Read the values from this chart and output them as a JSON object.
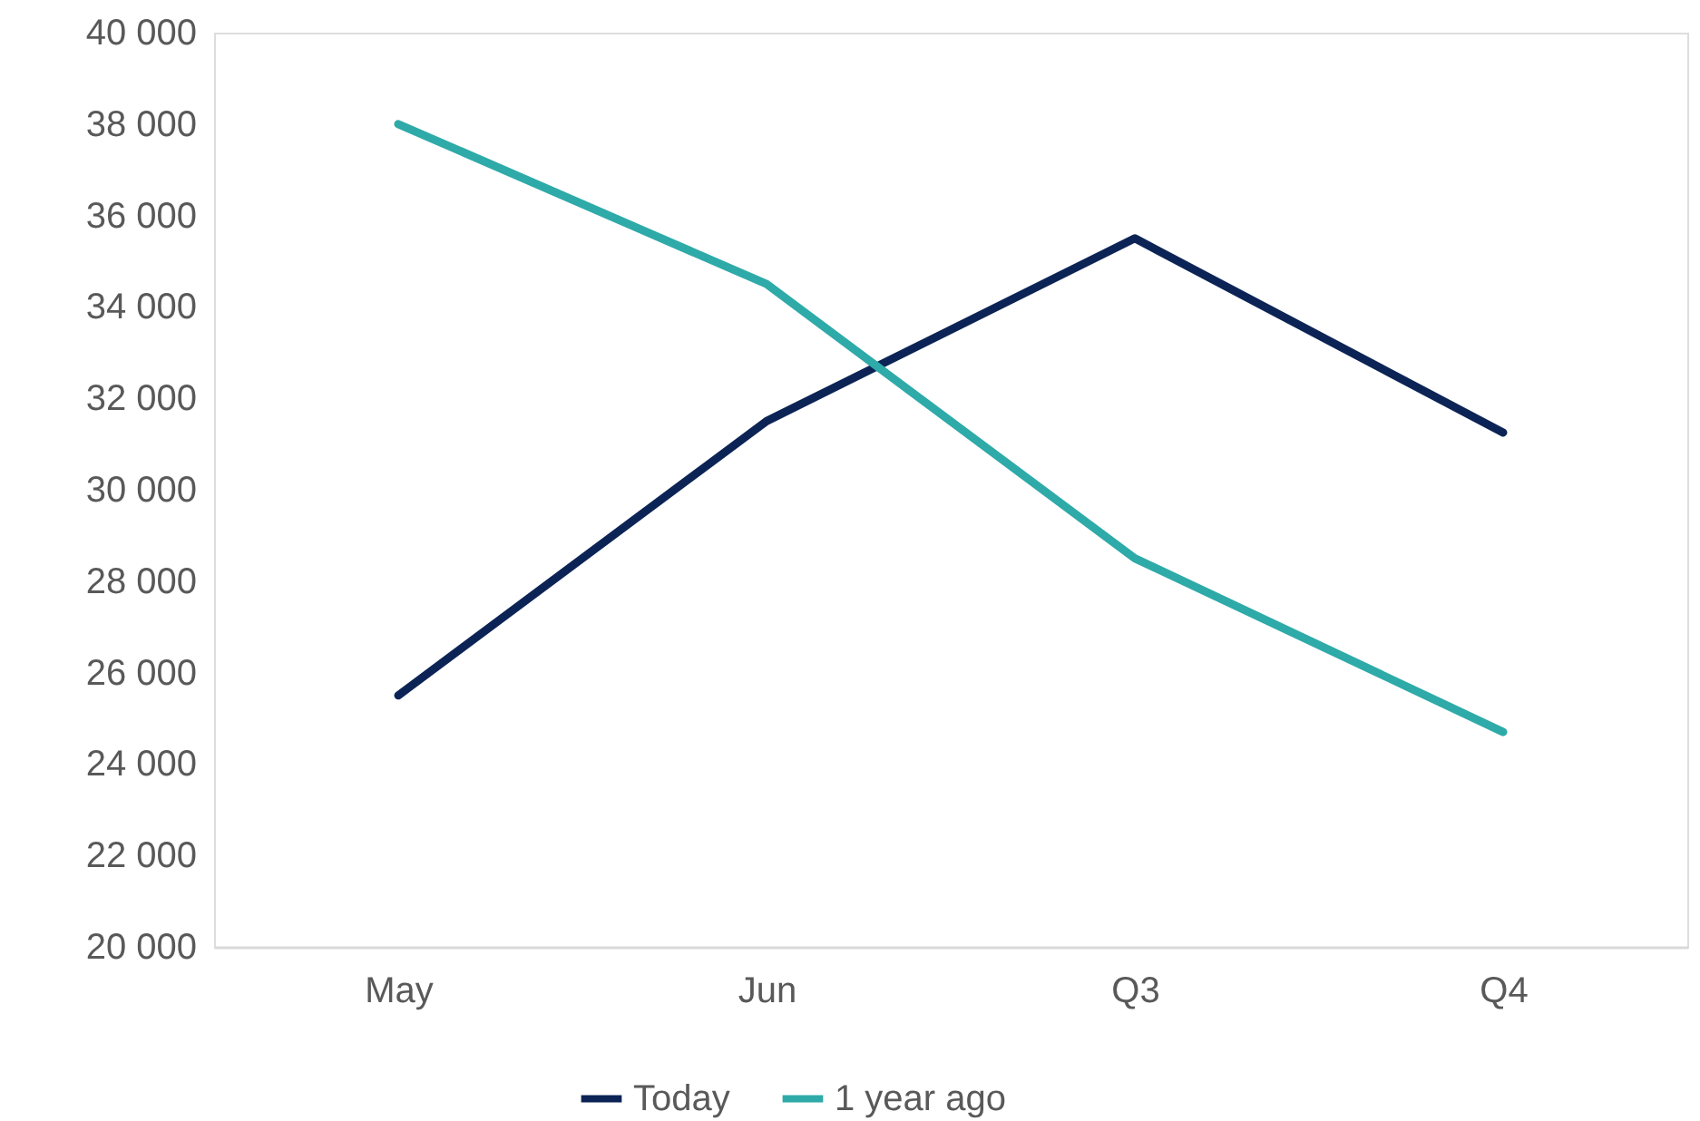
{
  "chart_data": {
    "type": "line",
    "categories": [
      "May",
      "Jun",
      "Q3",
      "Q4"
    ],
    "series": [
      {
        "name": "Today",
        "color": "#0c2455",
        "values": [
          25500,
          31500,
          35500,
          31250
        ]
      },
      {
        "name": "1 year ago",
        "color": "#2eaaa9",
        "values": [
          38000,
          34500,
          28500,
          24700
        ]
      }
    ],
    "ylim": [
      20000,
      40000
    ],
    "yticks": [
      {
        "value": 20000,
        "label": "20 000"
      },
      {
        "value": 22000,
        "label": "22 000"
      },
      {
        "value": 24000,
        "label": "24 000"
      },
      {
        "value": 26000,
        "label": "26 000"
      },
      {
        "value": 28000,
        "label": "28 000"
      },
      {
        "value": 30000,
        "label": "30 000"
      },
      {
        "value": 32000,
        "label": "32 000"
      },
      {
        "value": 34000,
        "label": "34 000"
      },
      {
        "value": 36000,
        "label": "36 000"
      },
      {
        "value": 38000,
        "label": "38 000"
      },
      {
        "value": 40000,
        "label": "40 000"
      }
    ],
    "grid": false,
    "legend": "bottom",
    "marker": "none",
    "line_style": "solid"
  }
}
